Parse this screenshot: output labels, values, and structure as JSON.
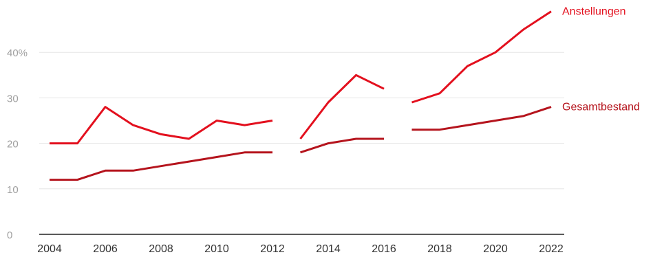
{
  "chart_data": {
    "type": "line",
    "x": [
      2004,
      2005,
      2006,
      2007,
      2008,
      2009,
      2010,
      2011,
      2012,
      2013,
      2014,
      2015,
      2016,
      2017,
      2018,
      2019,
      2020,
      2021,
      2022
    ],
    "x_tick_labels": [
      "2004",
      "2006",
      "2008",
      "2010",
      "2012",
      "2014",
      "2016",
      "2018",
      "2020",
      "2022"
    ],
    "y_tick_labels": [
      "0",
      "10",
      "20",
      "30",
      "40%"
    ],
    "y_ticks": [
      0,
      10,
      20,
      30,
      40
    ],
    "ylim": [
      0,
      50
    ],
    "xlim": [
      2004,
      2022
    ],
    "grid": true,
    "series": [
      {
        "name": "Anstellungen",
        "color": "#e3101e",
        "segments": [
          {
            "x": [
              2004,
              2005,
              2006,
              2007,
              2008,
              2009,
              2010,
              2011,
              2012
            ],
            "y": [
              20,
              20,
              28,
              24,
              22,
              21,
              25,
              24,
              25
            ]
          },
          {
            "x": [
              2013,
              2014,
              2015,
              2016
            ],
            "y": [
              21,
              29,
              35,
              32
            ]
          },
          {
            "x": [
              2017,
              2018,
              2019,
              2020,
              2021,
              2022
            ],
            "y": [
              29,
              31,
              37,
              40,
              45,
              49
            ]
          }
        ]
      },
      {
        "name": "Gesamtbestand",
        "color": "#b5141d",
        "segments": [
          {
            "x": [
              2004,
              2005,
              2006,
              2007,
              2008,
              2009,
              2010,
              2011,
              2012
            ],
            "y": [
              12,
              12,
              14,
              14,
              15,
              16,
              17,
              18,
              18
            ]
          },
          {
            "x": [
              2013,
              2014,
              2015,
              2016
            ],
            "y": [
              18,
              20,
              21,
              21
            ]
          },
          {
            "x": [
              2017,
              2018,
              2019,
              2020,
              2021,
              2022
            ],
            "y": [
              23,
              23,
              24,
              25,
              26,
              28
            ]
          }
        ]
      }
    ]
  }
}
